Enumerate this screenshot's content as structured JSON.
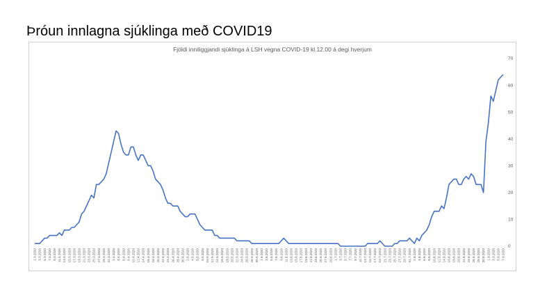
{
  "slide": {
    "title": "Þróun innlagna sjúklinga með COVID19"
  },
  "chart_data": {
    "type": "line",
    "title": "Fjöldi inniliggjandi sjúklinga á LSH vegna COVID-19 kl.12.00 á degi hverjum",
    "xlabel": "",
    "ylabel": "",
    "ylim": [
      0,
      70
    ],
    "yticks": [
      0,
      10,
      20,
      30,
      40,
      50,
      60,
      70
    ],
    "grid": false,
    "legend": "none",
    "line_color": "#4472c4",
    "x_tick_labels": [
      "1.3.2020",
      "3.3.2020",
      "5.3.2020",
      "7.3.2020",
      "9.3.2020",
      "11.3.2020",
      "13.3.2020",
      "15.3.2020",
      "17.3.2020",
      "19.3.2020",
      "21.3.2020",
      "23.3.2020",
      "25.3.2020",
      "27.3.2020",
      "29.3.2020",
      "31.3.2020",
      "2.4.2020",
      "4.4.2020",
      "6.4.2020",
      "8.4.2020",
      "10.4.2020",
      "12.4.2020",
      "14.4.2020",
      "16.4.2020",
      "18.4.2020",
      "20.4.2020",
      "22.4.2020",
      "24.4.2020",
      "26.4.2020",
      "28.4.2020",
      "30.4.2020",
      "2.5.2020",
      "4.5.2020",
      "6.5.2020",
      "8.5.2020",
      "10.5.2020",
      "12.5.2020",
      "14.5.2020",
      "16.5.2020",
      "18.5.2020",
      "20.5.2020",
      "22.5.2020",
      "24.5.2020",
      "26.5.2020",
      "28.5.2020",
      "30.5.2020",
      "1.6.2020",
      "3.6.2020",
      "5.6.2020",
      "7.6.2020",
      "9.6.2020",
      "11.6.2020",
      "13.6.2020",
      "15.6.2020",
      "17.6.2020",
      "19.6.2020",
      "21.6.2020",
      "23.6.2020",
      "25.6.2020",
      "27.6.2020",
      "29.6.2020",
      "1.7.2020",
      "3.7.2020",
      "5.7.2020",
      "7.7.2020",
      "9.7.2020",
      "11.7.2020",
      "13.7.2020",
      "15.7.2020",
      "17.7.2020",
      "19.7.2020",
      "21.7.2020",
      "23.7.2020",
      "25.7.2020",
      "27.7.2020",
      "29.7.2020",
      "31.7.2020",
      "2.8.2020",
      "4.8.2020",
      "6.8.2020",
      "8.8.2020",
      "10.8.2020",
      "12.8.2020",
      "14.8.2020",
      "16.8.2020",
      "18.8.2020",
      "20.8.2020",
      "22.8.2020",
      "24.8.2020",
      "26.8.2020",
      "28.8.2020",
      "30.8.2020",
      "1.9.2020",
      "3.9.2020",
      "5.9.2020",
      "7.9.2020",
      "9.9.2020",
      "11.9.2020",
      "13.9.2020",
      "15.9.2020",
      "17.9.2020",
      "19.9.2020",
      "21.9.2020",
      "23.9.2020",
      "25.9.2020",
      "27.9.2020",
      "29.9.2020",
      "1.10.2020",
      "3.10.2020",
      "5.10.2020",
      "7.10.2020",
      "9.10.2020",
      "11.10.2020",
      "13.10.2020",
      "15.10.2020",
      "17.10.2020",
      "19.10.2020",
      "21.10.2020",
      "23.10.2020",
      "25.10.2020",
      "27.10.2020",
      "29.10.2020",
      "31.10.2020"
    ],
    "series": [
      {
        "values": [
          1,
          1,
          1,
          2,
          3,
          3,
          4,
          4,
          4,
          4,
          5,
          4,
          6,
          6,
          6,
          7,
          7,
          8,
          9,
          12,
          13,
          15,
          17,
          19,
          18,
          23,
          23,
          24,
          25,
          27,
          31,
          35,
          39,
          43,
          42,
          38,
          35,
          34,
          34,
          37,
          37,
          34,
          32,
          34,
          34,
          32,
          30,
          30,
          28,
          25,
          24,
          23,
          21,
          18,
          16,
          16,
          15,
          15,
          15,
          13,
          12,
          11,
          11,
          12,
          12,
          12,
          10,
          8,
          7,
          6,
          6,
          6,
          6,
          4,
          4,
          3,
          3,
          3,
          3,
          3,
          3,
          3,
          2,
          2,
          2,
          2,
          2,
          2,
          1,
          1,
          1,
          1,
          1,
          1,
          1,
          1,
          1,
          1,
          1,
          1,
          2,
          3,
          2,
          1,
          1,
          1,
          1,
          1,
          1,
          1,
          1,
          1,
          1,
          1,
          1,
          1,
          1,
          1,
          1,
          1,
          1,
          1,
          1,
          1,
          0,
          0,
          0,
          0,
          0,
          0,
          0,
          0,
          0,
          0,
          0,
          1,
          1,
          1,
          1,
          1,
          2,
          1,
          0,
          0,
          0,
          0,
          1,
          1,
          2,
          2,
          2,
          2,
          3,
          2,
          1,
          3,
          2,
          4,
          5,
          6,
          8,
          11,
          13,
          13,
          13,
          15,
          14,
          18,
          23,
          24,
          25,
          25,
          23,
          23,
          25,
          26,
          25,
          27,
          26,
          23,
          23,
          23,
          20,
          39,
          46,
          56,
          54,
          58,
          62,
          63,
          64
        ]
      }
    ]
  }
}
